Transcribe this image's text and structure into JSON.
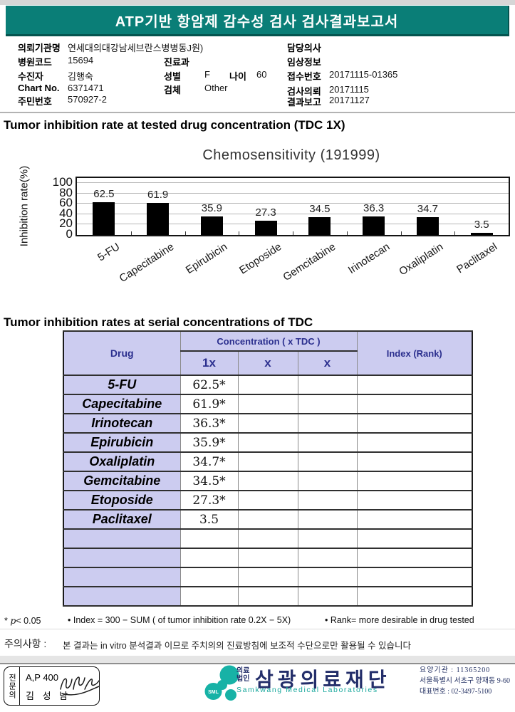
{
  "header": {
    "title": "ATP기반 항암제 감수성 검사 검사결과보고서",
    "banner_color": "#0a7e77"
  },
  "patient": {
    "org_label": "의뢰기관명",
    "org_value": "연세대의대강남세브란스병병동J원)",
    "hospital_code_label": "병원코드",
    "hospital_code_value": "15694",
    "patient_label": "수진자",
    "patient_value": "김행숙",
    "chart_no_label": "Chart No.",
    "chart_no_value": "6371471",
    "jumin_label": "주민번호",
    "jumin_value": "570927-2",
    "dept_label": "진료과",
    "dept_value": "",
    "sex_label": "성별",
    "sex_value": "F",
    "age_label": "나이",
    "age_value": "60",
    "specimen_label": "검체",
    "specimen_value": "Other",
    "doctor_label": "담당의사",
    "doctor_value": "",
    "clinical_label": "임상정보",
    "clinical_value": "",
    "receipt_label": "접수번호",
    "receipt_value": "20171115-01365",
    "request_label": "검사의뢰",
    "request_value": "20171115",
    "report_label": "결과보고",
    "report_value": "20171127"
  },
  "section1": {
    "title": "Tumor inhibition rate at tested drug concentration (TDC 1X)"
  },
  "chart_data": {
    "type": "bar",
    "title": "Chemosensitivity (191999)",
    "ylabel": "Inhibition rate(%)",
    "ylim": [
      0,
      100
    ],
    "yticks": [
      0,
      20,
      40,
      60,
      80,
      100
    ],
    "grid": true,
    "legend": "none",
    "bar_color": "#000000",
    "categories": [
      "5-FU",
      "Capecitabine",
      "Epirubicin",
      "Etoposide",
      "Gemcitabine",
      "Irinotecan",
      "Oxaliplatin",
      "Paclitaxel"
    ],
    "values": [
      62.5,
      61.9,
      35.9,
      27.3,
      34.5,
      36.3,
      34.7,
      3.5
    ]
  },
  "section2": {
    "title": "Tumor inhibition rates at serial concentrations of TDC"
  },
  "table": {
    "col_drug": "Drug",
    "col_concentration": "Concentration ( x TDC )",
    "col_index": "Index (Rank)",
    "sub_cols": [
      "1x",
      "x",
      "x"
    ],
    "rows": [
      {
        "drug": "5-FU",
        "c1": "62.5*",
        "c2": "",
        "c3": "",
        "index": ""
      },
      {
        "drug": "Capecitabine",
        "c1": "61.9*",
        "c2": "",
        "c3": "",
        "index": ""
      },
      {
        "drug": "Irinotecan",
        "c1": "36.3*",
        "c2": "",
        "c3": "",
        "index": ""
      },
      {
        "drug": "Epirubicin",
        "c1": "35.9*",
        "c2": "",
        "c3": "",
        "index": ""
      },
      {
        "drug": "Oxaliplatin",
        "c1": "34.7*",
        "c2": "",
        "c3": "",
        "index": ""
      },
      {
        "drug": "Gemcitabine",
        "c1": "34.5*",
        "c2": "",
        "c3": "",
        "index": ""
      },
      {
        "drug": "Etoposide",
        "c1": "27.3*",
        "c2": "",
        "c3": "",
        "index": ""
      },
      {
        "drug": "Paclitaxel",
        "c1": "3.5",
        "c2": "",
        "c3": "",
        "index": ""
      },
      {
        "drug": "",
        "c1": "",
        "c2": "",
        "c3": "",
        "index": ""
      },
      {
        "drug": "",
        "c1": "",
        "c2": "",
        "c3": "",
        "index": ""
      },
      {
        "drug": "",
        "c1": "",
        "c2": "",
        "c3": "",
        "index": ""
      },
      {
        "drug": "",
        "c1": "",
        "c2": "",
        "c3": "",
        "index": ""
      }
    ]
  },
  "footnotes": {
    "star": "*",
    "p": "p",
    "p_rest": "< 0.05",
    "index_formula": "• Index = 300 − SUM ( of tumor inhibition rate 0.2X  −  5X)",
    "rank_note": "• Rank= more desirable in drug tested"
  },
  "notice": {
    "label": "주의사항 :",
    "text": "본 결과는 in vitro 분석결과 이므로 주치의의 진료방침에 보조적 수단으로만 활용될 수 있습니다"
  },
  "footer": {
    "stamp": {
      "vertical_label": "전문의",
      "line1": "A,P 400",
      "line2": "김 성 남"
    },
    "logo": {
      "badge": "SML",
      "org_line1": "의료",
      "org_line2": "법인",
      "name": "삼광의료재단",
      "english": "Samkwang Medical Laboratories",
      "color": "#17b2a6"
    },
    "contact": {
      "line1": "요양기관 : 11365200",
      "line2": "서울특별시 서초구 양재동 9-60",
      "line3": "대표번호 : 02-3497-5100"
    }
  }
}
